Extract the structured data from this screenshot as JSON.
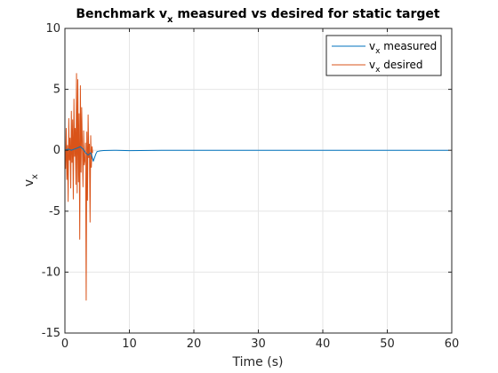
{
  "chart_data": {
    "type": "line",
    "title": {
      "main": "Benchmark v",
      "sub": "x",
      "rest": " measured vs desired for static target"
    },
    "xlabel": "Time (s)",
    "ylabel": {
      "main": "v",
      "sub": "x"
    },
    "xlim": [
      0,
      60
    ],
    "ylim": [
      -15,
      10
    ],
    "xticks": [
      0,
      10,
      20,
      30,
      40,
      50,
      60
    ],
    "yticks": [
      -15,
      -10,
      -5,
      0,
      5,
      10
    ],
    "xtick_labels": [
      "0",
      "10",
      "20",
      "30",
      "40",
      "50",
      "60"
    ],
    "ytick_labels": [
      "-15",
      "-10",
      "-5",
      "0",
      "5",
      "10"
    ],
    "grid": true,
    "legend_position": "top-right",
    "series": [
      {
        "name": {
          "main": "v",
          "sub": "x",
          "rest": " measured"
        },
        "color": "#0072BD",
        "x": [
          0,
          0.5,
          1.0,
          1.5,
          2.0,
          2.4,
          2.8,
          3.2,
          3.6,
          4.0,
          4.2,
          4.4,
          4.6,
          4.8,
          5.0,
          5.5,
          6,
          8,
          10,
          15,
          20,
          25,
          30,
          35,
          40,
          45,
          50,
          55,
          59.5
        ],
        "y": [
          0.0,
          0.1,
          0.0,
          0.1,
          0.2,
          0.3,
          0.1,
          -0.2,
          -0.4,
          -0.2,
          -0.5,
          -0.9,
          -0.6,
          -0.3,
          -0.1,
          -0.05,
          -0.02,
          0.0,
          -0.03,
          0.0,
          0.0,
          0.0,
          0.0,
          0.0,
          0.0,
          0.0,
          0.0,
          0.0,
          0.0
        ]
      },
      {
        "name": {
          "main": "v",
          "sub": "x",
          "rest": " desired"
        },
        "color": "#D95319",
        "x": [
          0,
          0.1,
          0.2,
          0.3,
          0.4,
          0.5,
          0.6,
          0.7,
          0.8,
          0.9,
          1.0,
          1.1,
          1.2,
          1.3,
          1.4,
          1.5,
          1.6,
          1.7,
          1.8,
          1.9,
          2.0,
          2.1,
          2.2,
          2.3,
          2.4,
          2.5,
          2.6,
          2.7,
          2.8,
          2.9,
          3.0,
          3.1,
          3.2,
          3.3,
          3.4,
          3.5,
          3.6,
          3.7,
          3.8,
          3.9,
          4.0,
          4.1,
          4.2,
          4.3
        ],
        "y": [
          0.0,
          -1.5,
          1.8,
          -2.4,
          0.4,
          -4.2,
          2.6,
          -0.8,
          1.0,
          -3.1,
          3.2,
          -1.0,
          2.5,
          -4.0,
          4.2,
          -0.5,
          1.8,
          -2.8,
          6.3,
          -3.5,
          5.8,
          -2.6,
          3.0,
          -7.3,
          5.3,
          -1.8,
          3.5,
          0.4,
          -3.0,
          1.6,
          -1.2,
          -0.8,
          0.6,
          -12.3,
          1.5,
          -4.1,
          2.9,
          -0.6,
          0.5,
          -5.9,
          1.2,
          -1.4,
          0.3,
          -0.2
        ]
      }
    ]
  }
}
